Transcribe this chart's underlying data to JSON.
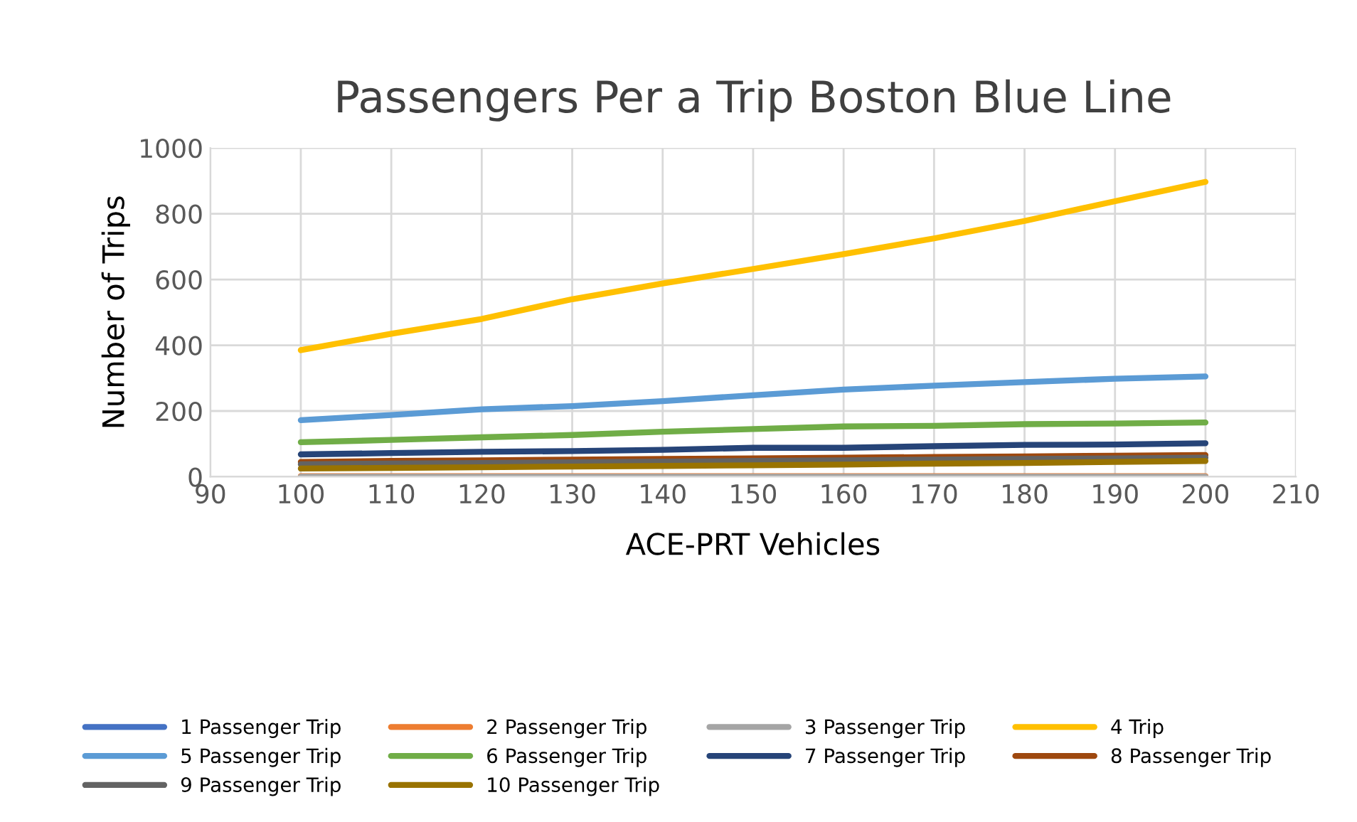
{
  "chart_data": {
    "type": "line",
    "title": "Passengers Per a Trip Boston Blue Line",
    "xlabel": "ACE-PRT Vehicles",
    "ylabel": "Number of Trips",
    "x": [
      100,
      110,
      120,
      130,
      140,
      150,
      160,
      170,
      180,
      190,
      200
    ],
    "xlim": [
      90,
      210
    ],
    "xticks": [
      90,
      100,
      110,
      120,
      130,
      140,
      150,
      160,
      170,
      180,
      190,
      200,
      210
    ],
    "ylim": [
      0,
      1000
    ],
    "yticks": [
      0,
      200,
      400,
      600,
      800,
      1000
    ],
    "grid": true,
    "legend": "bottom",
    "marker": "none",
    "line_style": "solid",
    "series": [
      {
        "name": "1 Passenger Trip",
        "color": "#4472c4",
        "values": [
          null,
          null,
          null,
          null,
          null,
          null,
          null,
          null,
          null,
          null,
          null
        ]
      },
      {
        "name": "2 Passenger Trip",
        "color": "#ed7d31",
        "values": [
          2,
          2,
          2,
          2,
          2,
          2,
          2,
          2,
          2,
          2,
          2
        ]
      },
      {
        "name": "3 Passenger Trip",
        "color": "#a5a5a5",
        "values": [
          0,
          0,
          0,
          0,
          0,
          0,
          0,
          0,
          0,
          0,
          0
        ]
      },
      {
        "name": "4 Trip",
        "color": "#ffc000",
        "values": [
          385,
          435,
          480,
          540,
          588,
          632,
          677,
          725,
          778,
          838,
          897
        ]
      },
      {
        "name": "5 Passenger Trip",
        "color": "#5b9bd5",
        "values": [
          172,
          188,
          205,
          215,
          230,
          248,
          265,
          277,
          288,
          298,
          305
        ]
      },
      {
        "name": "6 Passenger Trip",
        "color": "#70ad47",
        "values": [
          105,
          112,
          120,
          127,
          137,
          145,
          153,
          155,
          160,
          162,
          165
        ]
      },
      {
        "name": "7 Passenger Trip",
        "color": "#264478",
        "values": [
          68,
          72,
          76,
          78,
          82,
          88,
          88,
          93,
          97,
          98,
          102
        ]
      },
      {
        "name": "8 Passenger Trip",
        "color": "#9e480e",
        "values": [
          45,
          48,
          50,
          52,
          54,
          56,
          58,
          60,
          62,
          64,
          66
        ]
      },
      {
        "name": "9 Passenger Trip",
        "color": "#636363",
        "values": [
          38,
          40,
          42,
          44,
          46,
          48,
          50,
          52,
          54,
          56,
          58
        ]
      },
      {
        "name": "10 Passenger Trip",
        "color": "#997300",
        "values": [
          25,
          27,
          29,
          31,
          33,
          35,
          37,
          40,
          42,
          45,
          48
        ]
      }
    ]
  }
}
